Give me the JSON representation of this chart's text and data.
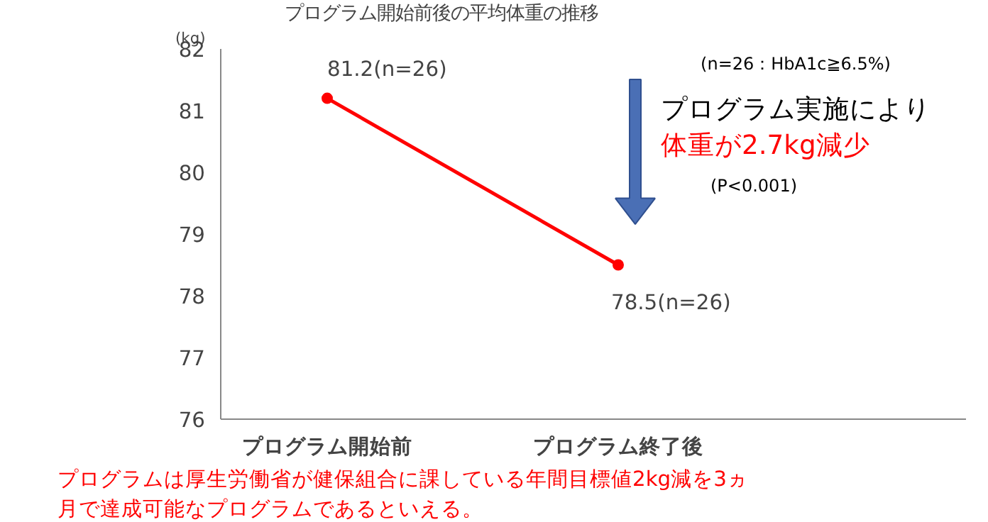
{
  "chart_data": {
    "type": "line",
    "title": "プログラム開始前後の平均体重の推移",
    "ylabel": "(kg)",
    "categories": [
      "プログラム開始前",
      "プログラム終了後"
    ],
    "series": [
      {
        "color": "#ff0000",
        "values": [
          81.2,
          78.5
        ],
        "value_labels": [
          "81.2(n=26)",
          "78.5(n=26)"
        ]
      }
    ],
    "ylim": [
      76,
      82
    ],
    "yticks": [
      76,
      77,
      78,
      79,
      80,
      81,
      82
    ],
    "grid": false,
    "marker": "circle",
    "line_style": "solid",
    "annotations": [
      "(n=26：HbA1c≧6.5%)",
      "プログラム実施により",
      "体重が2.7kg減少",
      "(P<0.001)",
      "プログラムは厚生労働省が健保組合に課している年間目標値2kg減を3ヵ月で達成可能なプログラムであるといえる。"
    ]
  }
}
